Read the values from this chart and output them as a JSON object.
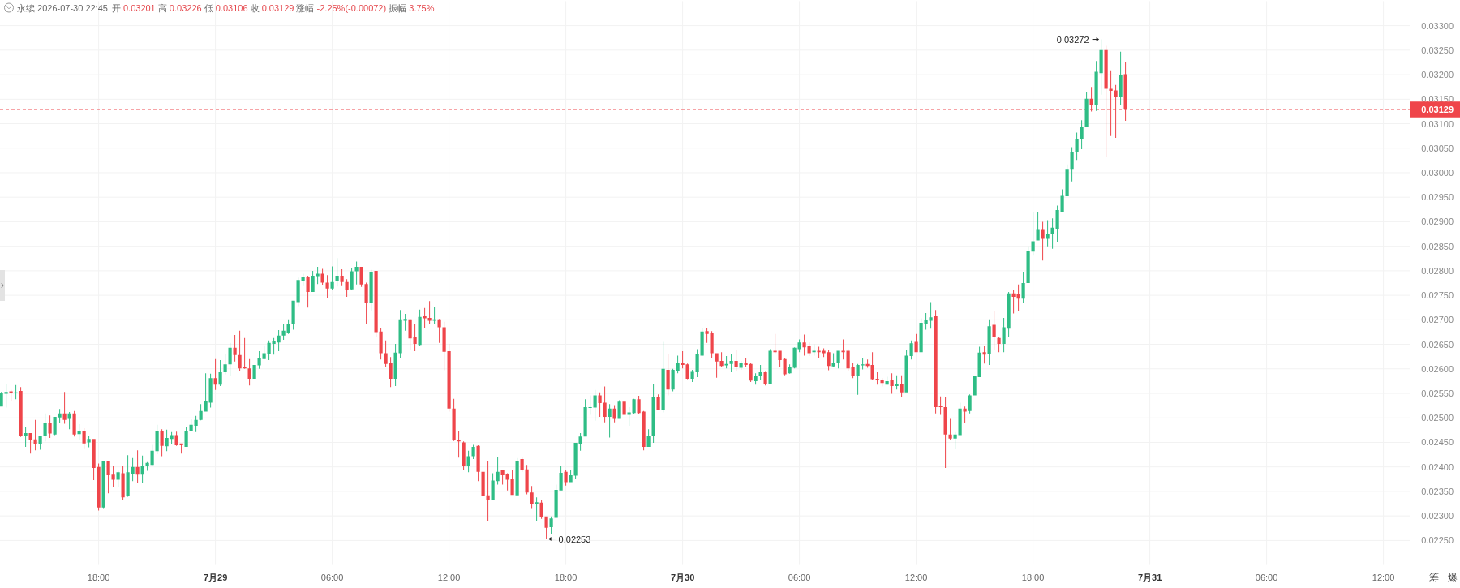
{
  "chart_data": {
    "type": "candlestick",
    "title": "永续 2026-07-30 22:45",
    "subtitle": "开 0.03201 高 0.03226 低 0.03106 收 0.03129 涨幅 -2.25%(-0.00072) 振幅 3.75%",
    "x": [
      "2026-07-28T13:00",
      "2026-07-28T13:15",
      "2026-07-28T13:30",
      "2026-07-28T13:45",
      "2026-07-28T14:00",
      "2026-07-28T14:15",
      "2026-07-28T14:30",
      "2026-07-28T14:45",
      "2026-07-28T15:00",
      "2026-07-28T15:15",
      "2026-07-28T15:30",
      "2026-07-28T15:45",
      "2026-07-28T16:00",
      "2026-07-28T16:15",
      "2026-07-28T16:30",
      "2026-07-28T16:45",
      "2026-07-28T17:00",
      "2026-07-28T17:15",
      "2026-07-28T17:30",
      "2026-07-28T17:45",
      "2026-07-28T18:00",
      "2026-07-28T18:15",
      "2026-07-28T18:30",
      "2026-07-28T18:45",
      "2026-07-28T19:00",
      "2026-07-28T19:15",
      "2026-07-28T19:30",
      "2026-07-28T19:45",
      "2026-07-28T20:00",
      "2026-07-28T20:15",
      "2026-07-28T20:30",
      "2026-07-28T20:45",
      "2026-07-28T21:00",
      "2026-07-28T21:15",
      "2026-07-28T21:30",
      "2026-07-28T21:45",
      "2026-07-28T22:00",
      "2026-07-28T22:15",
      "2026-07-28T22:30",
      "2026-07-28T22:45",
      "2026-07-28T23:00",
      "2026-07-28T23:15",
      "2026-07-28T23:30",
      "2026-07-28T23:45",
      "2026-07-29T00:00",
      "2026-07-29T00:15",
      "2026-07-29T00:30",
      "2026-07-29T00:45",
      "2026-07-29T01:00",
      "2026-07-29T01:15",
      "2026-07-29T01:30",
      "2026-07-29T01:45",
      "2026-07-29T02:00",
      "2026-07-29T02:15",
      "2026-07-29T02:30",
      "2026-07-29T02:45",
      "2026-07-29T03:00",
      "2026-07-29T03:15",
      "2026-07-29T03:30",
      "2026-07-29T03:45",
      "2026-07-29T04:00",
      "2026-07-29T04:15",
      "2026-07-29T04:30",
      "2026-07-29T04:45",
      "2026-07-29T05:00",
      "2026-07-29T05:15",
      "2026-07-29T05:30",
      "2026-07-29T05:45",
      "2026-07-29T06:00",
      "2026-07-29T06:15",
      "2026-07-29T06:30",
      "2026-07-29T06:45",
      "2026-07-29T07:00",
      "2026-07-29T07:15",
      "2026-07-29T07:30",
      "2026-07-29T07:45",
      "2026-07-29T08:00",
      "2026-07-29T08:15",
      "2026-07-29T08:30",
      "2026-07-29T08:45",
      "2026-07-29T09:00",
      "2026-07-29T09:15",
      "2026-07-29T09:30",
      "2026-07-29T09:45",
      "2026-07-29T10:00",
      "2026-07-29T10:15",
      "2026-07-29T10:30",
      "2026-07-29T10:45",
      "2026-07-29T11:00",
      "2026-07-29T11:15",
      "2026-07-29T11:30",
      "2026-07-29T11:45",
      "2026-07-29T12:00",
      "2026-07-29T12:15",
      "2026-07-29T12:30",
      "2026-07-29T12:45",
      "2026-07-29T13:00",
      "2026-07-29T13:15",
      "2026-07-29T13:30",
      "2026-07-29T13:45",
      "2026-07-29T14:00",
      "2026-07-29T14:15",
      "2026-07-29T14:30",
      "2026-07-29T14:45",
      "2026-07-29T15:00",
      "2026-07-29T15:15",
      "2026-07-29T15:30",
      "2026-07-29T15:45",
      "2026-07-29T16:00",
      "2026-07-29T16:15",
      "2026-07-29T16:30",
      "2026-07-29T16:45",
      "2026-07-29T17:00",
      "2026-07-29T17:15",
      "2026-07-29T17:30",
      "2026-07-29T17:45",
      "2026-07-29T18:00",
      "2026-07-29T18:15",
      "2026-07-29T18:30",
      "2026-07-29T18:45",
      "2026-07-29T19:00",
      "2026-07-29T19:15",
      "2026-07-29T19:30",
      "2026-07-29T19:45",
      "2026-07-29T20:00",
      "2026-07-29T20:15",
      "2026-07-29T20:30",
      "2026-07-29T20:45",
      "2026-07-29T21:00",
      "2026-07-29T21:15",
      "2026-07-29T21:30",
      "2026-07-29T21:45",
      "2026-07-29T22:00",
      "2026-07-29T22:15",
      "2026-07-29T22:30",
      "2026-07-29T22:45",
      "2026-07-29T23:00",
      "2026-07-29T23:15",
      "2026-07-29T23:30",
      "2026-07-29T23:45",
      "2026-07-30T00:00",
      "2026-07-30T00:15",
      "2026-07-30T00:30",
      "2026-07-30T00:45",
      "2026-07-30T01:00",
      "2026-07-30T01:15",
      "2026-07-30T01:30",
      "2026-07-30T01:45",
      "2026-07-30T02:00",
      "2026-07-30T02:15",
      "2026-07-30T02:30",
      "2026-07-30T02:45",
      "2026-07-30T03:00",
      "2026-07-30T03:15",
      "2026-07-30T03:30",
      "2026-07-30T03:45",
      "2026-07-30T04:00",
      "2026-07-30T04:15",
      "2026-07-30T04:30",
      "2026-07-30T04:45",
      "2026-07-30T05:00",
      "2026-07-30T05:15",
      "2026-07-30T05:30",
      "2026-07-30T05:45",
      "2026-07-30T06:00",
      "2026-07-30T06:15",
      "2026-07-30T06:30",
      "2026-07-30T06:45",
      "2026-07-30T07:00",
      "2026-07-30T07:15",
      "2026-07-30T07:30",
      "2026-07-30T07:45",
      "2026-07-30T08:00",
      "2026-07-30T08:15",
      "2026-07-30T08:30",
      "2026-07-30T08:45",
      "2026-07-30T09:00",
      "2026-07-30T09:15",
      "2026-07-30T09:30",
      "2026-07-30T09:45",
      "2026-07-30T10:00",
      "2026-07-30T10:15",
      "2026-07-30T10:30",
      "2026-07-30T10:45",
      "2026-07-30T11:00",
      "2026-07-30T11:15",
      "2026-07-30T11:30",
      "2026-07-30T11:45",
      "2026-07-30T12:00",
      "2026-07-30T12:15",
      "2026-07-30T12:30",
      "2026-07-30T12:45",
      "2026-07-30T13:00",
      "2026-07-30T13:15",
      "2026-07-30T13:30",
      "2026-07-30T13:45",
      "2026-07-30T14:00",
      "2026-07-30T14:15",
      "2026-07-30T14:30",
      "2026-07-30T14:45",
      "2026-07-30T15:00",
      "2026-07-30T15:15",
      "2026-07-30T15:30",
      "2026-07-30T15:45",
      "2026-07-30T16:00",
      "2026-07-30T16:15",
      "2026-07-30T16:30",
      "2026-07-30T16:45",
      "2026-07-30T17:00",
      "2026-07-30T17:15",
      "2026-07-30T17:30",
      "2026-07-30T17:45",
      "2026-07-30T18:00",
      "2026-07-30T18:15",
      "2026-07-30T18:30",
      "2026-07-30T18:45",
      "2026-07-30T19:00",
      "2026-07-30T19:15",
      "2026-07-30T19:30",
      "2026-07-30T19:45",
      "2026-07-30T20:00",
      "2026-07-30T20:15",
      "2026-07-30T20:30",
      "2026-07-30T20:45",
      "2026-07-30T21:00",
      "2026-07-30T21:15",
      "2026-07-30T21:30",
      "2026-07-30T21:45",
      "2026-07-30T22:00",
      "2026-07-30T22:15",
      "2026-07-30T22:30",
      "2026-07-30T22:45"
    ],
    "ohlc": [
      [
        0.02523,
        0.02553,
        0.02523,
        0.0255
      ],
      [
        0.02549,
        0.02569,
        0.02521,
        0.02553
      ],
      [
        0.02554,
        0.02557,
        0.02534,
        0.0255
      ],
      [
        0.0255,
        0.02567,
        0.02538,
        0.02552
      ],
      [
        0.02555,
        0.02563,
        0.02461,
        0.02463
      ],
      [
        0.02463,
        0.02481,
        0.02441,
        0.02469
      ],
      [
        0.02469,
        0.02469,
        0.02427,
        0.02455
      ],
      [
        0.02456,
        0.02496,
        0.02434,
        0.02447
      ],
      [
        0.02447,
        0.02463,
        0.02435,
        0.02463
      ],
      [
        0.02463,
        0.02509,
        0.02452,
        0.0249
      ],
      [
        0.0249,
        0.02505,
        0.02459,
        0.02468
      ],
      [
        0.02466,
        0.02502,
        0.02465,
        0.02502
      ],
      [
        0.02501,
        0.02518,
        0.02489,
        0.02509
      ],
      [
        0.02509,
        0.02553,
        0.02488,
        0.02496
      ],
      [
        0.02498,
        0.02512,
        0.02477,
        0.02509
      ],
      [
        0.02509,
        0.02514,
        0.02462,
        0.02466
      ],
      [
        0.02467,
        0.02487,
        0.02454,
        0.02474
      ],
      [
        0.02473,
        0.02479,
        0.02438,
        0.02448
      ],
      [
        0.0245,
        0.02464,
        0.0244,
        0.02457
      ],
      [
        0.02457,
        0.02457,
        0.02373,
        0.02398
      ],
      [
        0.024,
        0.02407,
        0.02311,
        0.02317
      ],
      [
        0.02317,
        0.02412,
        0.02316,
        0.02412
      ],
      [
        0.02411,
        0.02411,
        0.02346,
        0.02383
      ],
      [
        0.02384,
        0.02401,
        0.0236,
        0.02374
      ],
      [
        0.02374,
        0.02392,
        0.0236,
        0.02389
      ],
      [
        0.02387,
        0.02403,
        0.02333,
        0.02338
      ],
      [
        0.02341,
        0.02424,
        0.02339,
        0.02389
      ],
      [
        0.02385,
        0.02418,
        0.02371,
        0.024
      ],
      [
        0.024,
        0.02434,
        0.02368,
        0.02384
      ],
      [
        0.02384,
        0.02423,
        0.02368,
        0.02403
      ],
      [
        0.02401,
        0.0241,
        0.02392,
        0.02408
      ],
      [
        0.02404,
        0.02445,
        0.02401,
        0.02433
      ],
      [
        0.02432,
        0.02486,
        0.02426,
        0.02474
      ],
      [
        0.02474,
        0.02477,
        0.02422,
        0.02443
      ],
      [
        0.02442,
        0.02476,
        0.02432,
        0.02459
      ],
      [
        0.02457,
        0.02471,
        0.02447,
        0.02465
      ],
      [
        0.02465,
        0.02472,
        0.02443,
        0.02444
      ],
      [
        0.02448,
        0.02448,
        0.02427,
        0.02444
      ],
      [
        0.02441,
        0.02482,
        0.02441,
        0.02473
      ],
      [
        0.02474,
        0.02497,
        0.02473,
        0.02486
      ],
      [
        0.02484,
        0.02504,
        0.02471,
        0.02496
      ],
      [
        0.02496,
        0.02528,
        0.02495,
        0.02514
      ],
      [
        0.02513,
        0.02591,
        0.02513,
        0.02534
      ],
      [
        0.02531,
        0.0259,
        0.02521,
        0.02581
      ],
      [
        0.02581,
        0.0262,
        0.02557,
        0.02568
      ],
      [
        0.02568,
        0.02618,
        0.02565,
        0.02593
      ],
      [
        0.02593,
        0.02631,
        0.02589,
        0.02609
      ],
      [
        0.02609,
        0.02653,
        0.02586,
        0.02643
      ],
      [
        0.02643,
        0.02669,
        0.02615,
        0.02628
      ],
      [
        0.02628,
        0.02678,
        0.02596,
        0.02601
      ],
      [
        0.02604,
        0.02663,
        0.026,
        0.02601
      ],
      [
        0.02601,
        0.0262,
        0.02566,
        0.0258
      ],
      [
        0.0258,
        0.02608,
        0.0258,
        0.02608
      ],
      [
        0.02607,
        0.02636,
        0.026,
        0.02621
      ],
      [
        0.0262,
        0.02648,
        0.02619,
        0.02632
      ],
      [
        0.02631,
        0.02658,
        0.02618,
        0.02653
      ],
      [
        0.02651,
        0.02663,
        0.02629,
        0.02657
      ],
      [
        0.02654,
        0.02679,
        0.02636,
        0.02668
      ],
      [
        0.02668,
        0.02692,
        0.02659,
        0.02678
      ],
      [
        0.02674,
        0.02701,
        0.02671,
        0.02692
      ],
      [
        0.02691,
        0.02739,
        0.0268,
        0.02739
      ],
      [
        0.02736,
        0.02786,
        0.02728,
        0.02781
      ],
      [
        0.02779,
        0.02794,
        0.02769,
        0.02787
      ],
      [
        0.02787,
        0.0279,
        0.02725,
        0.02757
      ],
      [
        0.02757,
        0.028,
        0.02757,
        0.0279
      ],
      [
        0.02789,
        0.02808,
        0.02773,
        0.02794
      ],
      [
        0.02794,
        0.02804,
        0.02771,
        0.02776
      ],
      [
        0.02776,
        0.02791,
        0.02744,
        0.02764
      ],
      [
        0.02764,
        0.02809,
        0.0276,
        0.02777
      ],
      [
        0.02779,
        0.02826,
        0.02768,
        0.0279
      ],
      [
        0.0279,
        0.02803,
        0.02769,
        0.02777
      ],
      [
        0.02777,
        0.02783,
        0.02747,
        0.02761
      ],
      [
        0.02762,
        0.02805,
        0.02761,
        0.02799
      ],
      [
        0.02799,
        0.02819,
        0.02772,
        0.02808
      ],
      [
        0.02808,
        0.02808,
        0.02767,
        0.02772
      ],
      [
        0.02773,
        0.02776,
        0.02692,
        0.02735
      ],
      [
        0.02735,
        0.02802,
        0.02717,
        0.02798
      ],
      [
        0.028,
        0.028,
        0.02666,
        0.02675
      ],
      [
        0.02676,
        0.02684,
        0.02619,
        0.02632
      ],
      [
        0.02632,
        0.02658,
        0.02604,
        0.0261
      ],
      [
        0.02613,
        0.02624,
        0.02563,
        0.0258
      ],
      [
        0.0258,
        0.02651,
        0.02565,
        0.02633
      ],
      [
        0.02632,
        0.0272,
        0.02622,
        0.02701
      ],
      [
        0.02698,
        0.02712,
        0.02678,
        0.02702
      ],
      [
        0.02701,
        0.02702,
        0.02639,
        0.02662
      ],
      [
        0.02664,
        0.02692,
        0.02636,
        0.02651
      ],
      [
        0.02649,
        0.02721,
        0.02647,
        0.02706
      ],
      [
        0.02707,
        0.02724,
        0.02684,
        0.02703
      ],
      [
        0.02704,
        0.02738,
        0.02691,
        0.02698
      ],
      [
        0.02698,
        0.02727,
        0.02691,
        0.02701
      ],
      [
        0.02701,
        0.02702,
        0.02653,
        0.02685
      ],
      [
        0.02685,
        0.02696,
        0.02597,
        0.02635
      ],
      [
        0.02636,
        0.02651,
        0.02513,
        0.02519
      ],
      [
        0.02519,
        0.02539,
        0.02453,
        0.02455
      ],
      [
        0.02455,
        0.02473,
        0.02419,
        0.02452
      ],
      [
        0.0245,
        0.02452,
        0.02393,
        0.02401
      ],
      [
        0.02401,
        0.02433,
        0.02389,
        0.02422
      ],
      [
        0.02422,
        0.02445,
        0.02416,
        0.02441
      ],
      [
        0.02443,
        0.02444,
        0.02371,
        0.0239
      ],
      [
        0.0239,
        0.0239,
        0.02341,
        0.02341
      ],
      [
        0.02342,
        0.02412,
        0.02289,
        0.02333
      ],
      [
        0.02333,
        0.02387,
        0.02333,
        0.02372
      ],
      [
        0.02371,
        0.0242,
        0.02364,
        0.0239
      ],
      [
        0.02393,
        0.02393,
        0.02364,
        0.02383
      ],
      [
        0.02385,
        0.02387,
        0.02352,
        0.02374
      ],
      [
        0.02375,
        0.02394,
        0.02343,
        0.02343
      ],
      [
        0.02342,
        0.02418,
        0.02342,
        0.02412
      ],
      [
        0.02416,
        0.02419,
        0.0239,
        0.02393
      ],
      [
        0.02395,
        0.02404,
        0.02344,
        0.02348
      ],
      [
        0.02348,
        0.02361,
        0.02316,
        0.02324
      ],
      [
        0.02324,
        0.02338,
        0.02289,
        0.02328
      ],
      [
        0.02327,
        0.02332,
        0.02294,
        0.02297
      ],
      [
        0.02299,
        0.02299,
        0.02253,
        0.02276
      ],
      [
        0.02277,
        0.02299,
        0.02262,
        0.02295
      ],
      [
        0.02296,
        0.02364,
        0.02296,
        0.02353
      ],
      [
        0.02352,
        0.02403,
        0.02352,
        0.02388
      ],
      [
        0.0239,
        0.02393,
        0.02362,
        0.02369
      ],
      [
        0.02369,
        0.02393,
        0.02369,
        0.02383
      ],
      [
        0.02382,
        0.02449,
        0.02376,
        0.02449
      ],
      [
        0.02447,
        0.02469,
        0.02433,
        0.02462
      ],
      [
        0.02462,
        0.02538,
        0.02462,
        0.02522
      ],
      [
        0.02521,
        0.02546,
        0.02506,
        0.02522
      ],
      [
        0.02521,
        0.02557,
        0.02494,
        0.02546
      ],
      [
        0.02546,
        0.02552,
        0.02502,
        0.0253
      ],
      [
        0.02531,
        0.02564,
        0.02491,
        0.02502
      ],
      [
        0.02502,
        0.02528,
        0.0246,
        0.02519
      ],
      [
        0.02519,
        0.02526,
        0.02491,
        0.02498
      ],
      [
        0.02498,
        0.02536,
        0.02498,
        0.02533
      ],
      [
        0.02533,
        0.02533,
        0.02506,
        0.02506
      ],
      [
        0.02506,
        0.02522,
        0.02484,
        0.02511
      ],
      [
        0.0251,
        0.02539,
        0.02507,
        0.02538
      ],
      [
        0.02538,
        0.02545,
        0.02507,
        0.0251
      ],
      [
        0.02513,
        0.02514,
        0.02434,
        0.02441
      ],
      [
        0.02441,
        0.02477,
        0.02441,
        0.02463
      ],
      [
        0.02463,
        0.02569,
        0.02449,
        0.02542
      ],
      [
        0.02542,
        0.02548,
        0.02516,
        0.02517
      ],
      [
        0.02517,
        0.02655,
        0.02511,
        0.026
      ],
      [
        0.02598,
        0.02631,
        0.02546,
        0.02558
      ],
      [
        0.02558,
        0.026,
        0.02554,
        0.02598
      ],
      [
        0.02596,
        0.02627,
        0.02591,
        0.02612
      ],
      [
        0.02612,
        0.02636,
        0.02601,
        0.02608
      ],
      [
        0.02609,
        0.02611,
        0.02579,
        0.0258
      ],
      [
        0.0258,
        0.02598,
        0.02573,
        0.02594
      ],
      [
        0.02593,
        0.0264,
        0.02583,
        0.02631
      ],
      [
        0.02627,
        0.02684,
        0.02626,
        0.02676
      ],
      [
        0.02677,
        0.02684,
        0.02653,
        0.02671
      ],
      [
        0.02674,
        0.02677,
        0.02623,
        0.02632
      ],
      [
        0.02632,
        0.02632,
        0.02582,
        0.02615
      ],
      [
        0.02616,
        0.02634,
        0.02604,
        0.02606
      ],
      [
        0.02607,
        0.02626,
        0.02601,
        0.0261
      ],
      [
        0.0261,
        0.0263,
        0.02593,
        0.02616
      ],
      [
        0.02616,
        0.02639,
        0.02595,
        0.02604
      ],
      [
        0.02602,
        0.02616,
        0.02598,
        0.02613
      ],
      [
        0.02612,
        0.02623,
        0.02604,
        0.02608
      ],
      [
        0.0261,
        0.02613,
        0.02573,
        0.02576
      ],
      [
        0.02575,
        0.02591,
        0.02568,
        0.02586
      ],
      [
        0.02585,
        0.02608,
        0.02577,
        0.02593
      ],
      [
        0.02593,
        0.02594,
        0.02566,
        0.02569
      ],
      [
        0.02569,
        0.0264,
        0.02569,
        0.02637
      ],
      [
        0.02637,
        0.02671,
        0.02632,
        0.02634
      ],
      [
        0.02637,
        0.02637,
        0.02603,
        0.02618
      ],
      [
        0.0262,
        0.02622,
        0.02587,
        0.02589
      ],
      [
        0.02591,
        0.02609,
        0.0259,
        0.02604
      ],
      [
        0.02602,
        0.02644,
        0.02601,
        0.02643
      ],
      [
        0.0264,
        0.0266,
        0.02634,
        0.02654
      ],
      [
        0.02654,
        0.0267,
        0.02627,
        0.02644
      ],
      [
        0.02647,
        0.02654,
        0.02626,
        0.02632
      ],
      [
        0.02634,
        0.0265,
        0.02627,
        0.02637
      ],
      [
        0.02637,
        0.02645,
        0.02623,
        0.02634
      ],
      [
        0.02637,
        0.02642,
        0.02624,
        0.02632
      ],
      [
        0.02634,
        0.02638,
        0.02597,
        0.02606
      ],
      [
        0.02605,
        0.02632,
        0.02604,
        0.02612
      ],
      [
        0.02612,
        0.02637,
        0.02601,
        0.02637
      ],
      [
        0.02637,
        0.0266,
        0.02619,
        0.02634
      ],
      [
        0.02637,
        0.0264,
        0.02596,
        0.02601
      ],
      [
        0.02604,
        0.02613,
        0.02581,
        0.02585
      ],
      [
        0.02586,
        0.0261,
        0.02547,
        0.02608
      ],
      [
        0.02607,
        0.02622,
        0.02599,
        0.02609
      ],
      [
        0.0261,
        0.02619,
        0.02602,
        0.02606
      ],
      [
        0.02608,
        0.02634,
        0.02578,
        0.02579
      ],
      [
        0.0258,
        0.02593,
        0.02568,
        0.02578
      ],
      [
        0.02577,
        0.02581,
        0.02564,
        0.02571
      ],
      [
        0.02568,
        0.02584,
        0.02567,
        0.02575
      ],
      [
        0.02577,
        0.02591,
        0.02549,
        0.02565
      ],
      [
        0.02565,
        0.02587,
        0.02558,
        0.0257
      ],
      [
        0.02569,
        0.02587,
        0.02543,
        0.02552
      ],
      [
        0.02552,
        0.02638,
        0.02552,
        0.02627
      ],
      [
        0.02626,
        0.02658,
        0.02619,
        0.02652
      ],
      [
        0.02655,
        0.02671,
        0.02634,
        0.02634
      ],
      [
        0.02634,
        0.02703,
        0.02634,
        0.02694
      ],
      [
        0.02692,
        0.02714,
        0.0268,
        0.02699
      ],
      [
        0.02698,
        0.02736,
        0.02682,
        0.02705
      ],
      [
        0.02707,
        0.0272,
        0.02509,
        0.02522
      ],
      [
        0.02525,
        0.02544,
        0.02506,
        0.02522
      ],
      [
        0.02522,
        0.02542,
        0.02398,
        0.02466
      ],
      [
        0.02466,
        0.02498,
        0.02455,
        0.02458
      ],
      [
        0.02458,
        0.02471,
        0.02437,
        0.02466
      ],
      [
        0.02465,
        0.02531,
        0.02465,
        0.02519
      ],
      [
        0.02519,
        0.02523,
        0.02489,
        0.02513
      ],
      [
        0.02514,
        0.02548,
        0.02509,
        0.02546
      ],
      [
        0.02546,
        0.02585,
        0.02546,
        0.02585
      ],
      [
        0.02583,
        0.02645,
        0.02583,
        0.02633
      ],
      [
        0.02634,
        0.02646,
        0.02611,
        0.02629
      ],
      [
        0.0263,
        0.02701,
        0.02608,
        0.02687
      ],
      [
        0.0269,
        0.02718,
        0.02638,
        0.02664
      ],
      [
        0.02663,
        0.02666,
        0.02634,
        0.02651
      ],
      [
        0.02651,
        0.02704,
        0.02634,
        0.02685
      ],
      [
        0.02682,
        0.02757,
        0.02664,
        0.02754
      ],
      [
        0.02754,
        0.0276,
        0.02713,
        0.02747
      ],
      [
        0.02752,
        0.02772,
        0.02717,
        0.02743
      ],
      [
        0.02743,
        0.02798,
        0.02734,
        0.02775
      ],
      [
        0.02775,
        0.0285,
        0.02775,
        0.02841
      ],
      [
        0.02839,
        0.0292,
        0.02831,
        0.0286
      ],
      [
        0.02862,
        0.0292,
        0.02862,
        0.02885
      ],
      [
        0.02885,
        0.029,
        0.02821,
        0.02865
      ],
      [
        0.02865,
        0.02903,
        0.0285,
        0.02875
      ],
      [
        0.02875,
        0.02907,
        0.02845,
        0.02888
      ],
      [
        0.02886,
        0.02933,
        0.02859,
        0.02924
      ],
      [
        0.0292,
        0.02966,
        0.0292,
        0.02953
      ],
      [
        0.02952,
        0.03017,
        0.02952,
        0.03008
      ],
      [
        0.03008,
        0.03052,
        0.02982,
        0.03043
      ],
      [
        0.03042,
        0.03082,
        0.03026,
        0.03069
      ],
      [
        0.03068,
        0.03107,
        0.03048,
        0.03093
      ],
      [
        0.03093,
        0.03165,
        0.03093,
        0.03151
      ],
      [
        0.03151,
        0.03175,
        0.03125,
        0.03138
      ],
      [
        0.03139,
        0.03228,
        0.03126,
        0.03206
      ],
      [
        0.03203,
        0.03272,
        0.03159,
        0.0325
      ],
      [
        0.0325,
        0.03259,
        0.03033,
        0.03171
      ],
      [
        0.03171,
        0.03209,
        0.03075,
        0.03167
      ],
      [
        0.03168,
        0.03179,
        0.03071,
        0.03155
      ],
      [
        0.03155,
        0.03247,
        0.03139,
        0.032
      ],
      [
        0.03201,
        0.03226,
        0.03106,
        0.03129
      ]
    ],
    "colors": [
      "#2ebd85",
      "#2ebd85",
      "#ef454a",
      "#2ebd85",
      "#ef454a",
      "#2ebd85",
      "#ef454a",
      "#ef454a",
      "#2ebd85",
      "#2ebd85",
      "#ef454a",
      "#2ebd85",
      "#2ebd85",
      "#ef454a",
      "#2ebd85",
      "#ef454a",
      "#2ebd85",
      "#ef454a",
      "#2ebd85",
      "#ef454a",
      "#ef454a",
      "#2ebd85",
      "#ef454a",
      "#ef454a",
      "#2ebd85",
      "#ef454a",
      "#2ebd85",
      "#2ebd85",
      "#ef454a",
      "#2ebd85",
      "#2ebd85",
      "#2ebd85",
      "#2ebd85",
      "#ef454a",
      "#2ebd85",
      "#2ebd85",
      "#ef454a",
      "#ef454a",
      "#2ebd85",
      "#2ebd85",
      "#2ebd85",
      "#2ebd85",
      "#2ebd85",
      "#2ebd85",
      "#ef454a",
      "#2ebd85",
      "#2ebd85",
      "#2ebd85",
      "#ef454a",
      "#ef454a",
      "#ef454a",
      "#ef454a",
      "#2ebd85",
      "#2ebd85",
      "#2ebd85",
      "#2ebd85",
      "#2ebd85",
      "#2ebd85",
      "#2ebd85",
      "#2ebd85",
      "#2ebd85",
      "#2ebd85",
      "#2ebd85",
      "#ef454a",
      "#2ebd85",
      "#2ebd85",
      "#ef454a",
      "#ef454a",
      "#2ebd85",
      "#2ebd85",
      "#ef454a",
      "#ef454a",
      "#2ebd85",
      "#2ebd85",
      "#ef454a",
      "#ef454a",
      "#2ebd85",
      "#ef454a",
      "#ef454a",
      "#ef454a",
      "#ef454a",
      "#2ebd85",
      "#2ebd85",
      "#2ebd85",
      "#ef454a",
      "#ef454a",
      "#2ebd85",
      "#ef454a",
      "#ef454a",
      "#2ebd85",
      "#ef454a",
      "#ef454a",
      "#ef454a",
      "#ef454a",
      "#ef454a",
      "#ef454a",
      "#2ebd85",
      "#2ebd85",
      "#ef454a",
      "#ef454a",
      "#ef454a",
      "#2ebd85",
      "#2ebd85",
      "#ef454a",
      "#ef454a",
      "#ef454a",
      "#2ebd85",
      "#ef454a",
      "#ef454a",
      "#ef454a",
      "#2ebd85",
      "#ef454a",
      "#ef454a",
      "#2ebd85",
      "#2ebd85",
      "#2ebd85",
      "#ef454a",
      "#2ebd85",
      "#2ebd85",
      "#2ebd85",
      "#2ebd85",
      "#2ebd85",
      "#2ebd85",
      "#ef454a",
      "#ef454a",
      "#2ebd85",
      "#ef454a",
      "#2ebd85",
      "#ef454a",
      "#2ebd85",
      "#2ebd85",
      "#ef454a",
      "#ef454a",
      "#2ebd85",
      "#2ebd85",
      "#ef454a",
      "#2ebd85",
      "#ef454a",
      "#2ebd85",
      "#2ebd85",
      "#ef454a",
      "#ef454a",
      "#2ebd85",
      "#2ebd85",
      "#2ebd85",
      "#ef454a",
      "#ef454a",
      "#ef454a",
      "#ef454a",
      "#2ebd85",
      "#2ebd85",
      "#ef454a",
      "#2ebd85",
      "#ef454a",
      "#ef454a",
      "#2ebd85",
      "#2ebd85",
      "#ef454a",
      "#2ebd85",
      "#ef454a",
      "#ef454a",
      "#ef454a",
      "#2ebd85",
      "#2ebd85",
      "#2ebd85",
      "#ef454a",
      "#ef454a",
      "#2ebd85",
      "#ef454a",
      "#ef454a",
      "#ef454a",
      "#2ebd85",
      "#2ebd85",
      "#ef454a",
      "#ef454a",
      "#ef454a",
      "#2ebd85",
      "#2ebd85",
      "#ef454a",
      "#ef454a",
      "#ef454a",
      "#ef454a",
      "#2ebd85",
      "#ef454a",
      "#2ebd85",
      "#ef454a",
      "#2ebd85",
      "#2ebd85",
      "#ef454a",
      "#2ebd85",
      "#2ebd85",
      "#2ebd85",
      "#ef454a",
      "#ef454a",
      "#ef454a",
      "#ef454a",
      "#2ebd85",
      "#2ebd85",
      "#ef454a",
      "#2ebd85",
      "#2ebd85",
      "#2ebd85",
      "#ef454a",
      "#2ebd85",
      "#ef454a",
      "#ef454a",
      "#2ebd85",
      "#2ebd85",
      "#ef454a",
      "#ef454a",
      "#2ebd85",
      "#2ebd85",
      "#2ebd85",
      "#2ebd85",
      "#ef454a",
      "#2ebd85",
      "#2ebd85",
      "#2ebd85",
      "#2ebd85",
      "#2ebd85",
      "#2ebd85",
      "#2ebd85",
      "#2ebd85",
      "#2ebd85",
      "#ef454a",
      "#2ebd85",
      "#2ebd85",
      "#ef454a",
      "#ef454a",
      "#ef454a",
      "#2ebd85",
      "#ef454a"
    ],
    "xlim": [
      "2026-07-28T12:56",
      "2026-07-31T13:21"
    ],
    "xticks": [
      {
        "value": "2026-07-28T18:00",
        "label": "18:00"
      },
      {
        "value": "2026-07-29T00:00",
        "label": "7月29"
      },
      {
        "value": "2026-07-29T06:00",
        "label": "06:00"
      },
      {
        "value": "2026-07-29T12:00",
        "label": "12:00"
      },
      {
        "value": "2026-07-29T18:00",
        "label": "18:00"
      },
      {
        "value": "2026-07-30T00:00",
        "label": "7月30"
      },
      {
        "value": "2026-07-30T06:00",
        "label": "06:00"
      },
      {
        "value": "2026-07-30T12:00",
        "label": "12:00"
      },
      {
        "value": "2026-07-30T18:00",
        "label": "18:00"
      },
      {
        "value": "2026-07-31T00:00",
        "label": "7月31"
      },
      {
        "value": "2026-07-31T06:00",
        "label": "06:00"
      },
      {
        "value": "2026-07-31T12:00",
        "label": "12:00"
      }
    ],
    "ylim": [
      0.022,
      0.0335
    ],
    "yticks": [
      {
        "value": 0.0225,
        "label": "0.02250"
      },
      {
        "value": 0.023,
        "label": "0.02300"
      },
      {
        "value": 0.0235,
        "label": "0.02350"
      },
      {
        "value": 0.024,
        "label": "0.02400"
      },
      {
        "value": 0.0245,
        "label": "0.02450"
      },
      {
        "value": 0.025,
        "label": "0.02500"
      },
      {
        "value": 0.0255,
        "label": "0.02550"
      },
      {
        "value": 0.026,
        "label": "0.02600"
      },
      {
        "value": 0.0265,
        "label": "0.02650"
      },
      {
        "value": 0.027,
        "label": "0.02700"
      },
      {
        "value": 0.0275,
        "label": "0.02750"
      },
      {
        "value": 0.028,
        "label": "0.02800"
      },
      {
        "value": 0.0285,
        "label": "0.02850"
      },
      {
        "value": 0.029,
        "label": "0.02900"
      },
      {
        "value": 0.0295,
        "label": "0.02950"
      },
      {
        "value": 0.03,
        "label": "0.03000"
      },
      {
        "value": 0.0305,
        "label": "0.03050"
      },
      {
        "value": 0.031,
        "label": "0.03100"
      },
      {
        "value": 0.0315,
        "label": "0.03150"
      },
      {
        "value": 0.032,
        "label": "0.03200"
      },
      {
        "value": 0.0325,
        "label": "0.03250"
      },
      {
        "value": 0.033,
        "label": "0.03300"
      }
    ],
    "grid": true,
    "ref_lines": [
      {
        "axis": "y",
        "value": 0.03129,
        "label": "0.03129",
        "color": "#ef454a",
        "line_style": "dashed"
      }
    ],
    "annotations": [
      {
        "text": "0.03272",
        "x": "2026-07-30T21:30",
        "y": 0.03272
      },
      {
        "text": "0.02253",
        "x": "2026-07-29T17:00",
        "y": 0.02253
      },
      "筹",
      "爆"
    ]
  }
}
